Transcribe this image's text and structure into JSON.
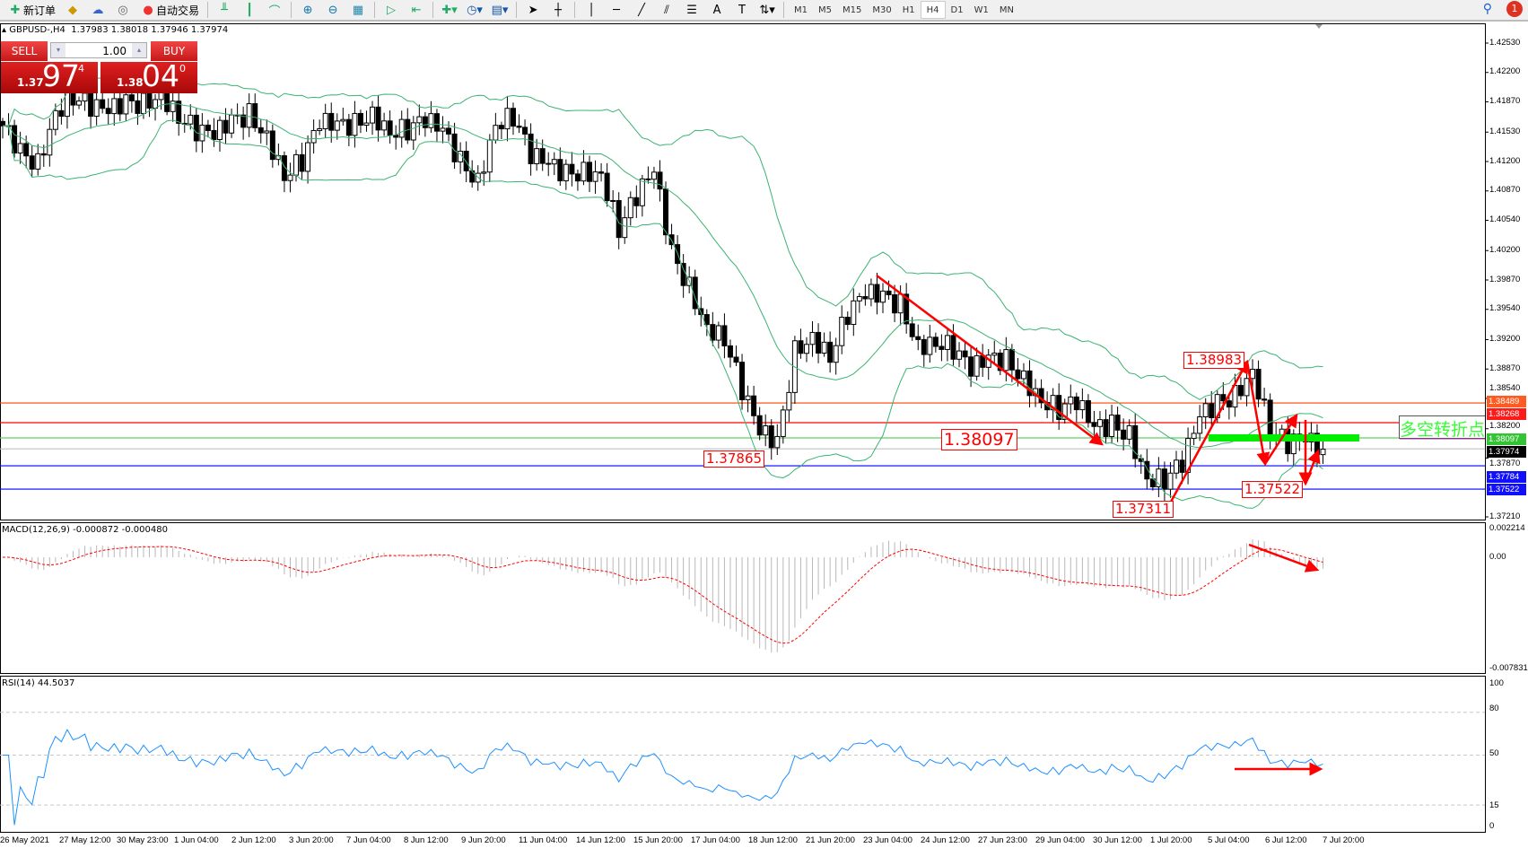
{
  "toolbar": {
    "new_order": "新订单",
    "auto_trading": "自动交易",
    "timeframes": [
      "M1",
      "M5",
      "M15",
      "M30",
      "H1",
      "H4",
      "D1",
      "W1",
      "MN"
    ],
    "active_timeframe": "H4",
    "notification_count": "1"
  },
  "header": {
    "symbol": "GBPUSD-,H4",
    "ohlc": "1.37983 1.38018 1.37946 1.37974"
  },
  "trade_panel": {
    "sell_label": "SELL",
    "buy_label": "BUY",
    "lot": "1.00",
    "sell_prefix": "1.37",
    "sell_big": "97",
    "sell_sup": "4",
    "buy_prefix": "1.38",
    "buy_big": "04",
    "buy_sup": "0"
  },
  "price_axis": [
    "1.42530",
    "1.42200",
    "1.41870",
    "1.41530",
    "1.41200",
    "1.40870",
    "1.40540",
    "1.40200",
    "1.39870",
    "1.39540",
    "1.39200",
    "1.38870",
    "1.38540",
    "1.38200",
    "1.37870",
    "1.37210"
  ],
  "levels": [
    {
      "price": "1.38489",
      "color": "#ff5a1f",
      "line": "#ff4000"
    },
    {
      "price": "1.38268",
      "color": "#ff1a1a",
      "line": "#ff0000"
    },
    {
      "price": "1.38097",
      "color": "#33c433",
      "line": "#66cc66"
    },
    {
      "price": "1.37974",
      "color": "#000000",
      "line": "#c0c0c0"
    },
    {
      "price": "1.37784",
      "color": "#1010ff",
      "line": "#0000ff"
    },
    {
      "price": "1.37522",
      "color": "#1010ff",
      "line": "#0000ff"
    }
  ],
  "annotations": {
    "a1": "1.37865",
    "a2": "1.38097",
    "a3": "1.37311",
    "a4": "1.38983",
    "a5": "1.37522",
    "pivot_text": "多空转折点"
  },
  "macd": {
    "label": "MACD(12,26,9) -0.000872 -0.000480",
    "axis": [
      "0.002214",
      "0.00",
      "-0.007831"
    ]
  },
  "rsi": {
    "label": "RSI(14) 44.5037",
    "axis": [
      "100",
      "80",
      "50",
      "15",
      "0"
    ]
  },
  "time_axis": [
    "26 May 2021",
    "27 May 12:00",
    "30 May 23:00",
    "1 Jun 04:00",
    "2 Jun 12:00",
    "3 Jun 20:00",
    "7 Jun 04:00",
    "8 Jun 12:00",
    "9 Jun 20:00",
    "11 Jun 04:00",
    "14 Jun 12:00",
    "15 Jun 20:00",
    "17 Jun 04:00",
    "18 Jun 12:00",
    "21 Jun 20:00",
    "23 Jun 04:00",
    "24 Jun 12:00",
    "27 Jun 23:00",
    "29 Jun 04:00",
    "30 Jun 12:00",
    "1 Jul 20:00",
    "5 Jul 04:00",
    "6 Jul 12:00",
    "7 Jul 20:00"
  ],
  "chart_data": {
    "type": "candlestick",
    "symbol": "GBPUSD",
    "timeframe": "H4",
    "ylim": [
      1.3721,
      1.4253
    ],
    "closes_every_3_bars": [
      1.416,
      1.413,
      1.4118,
      1.4176,
      1.4193,
      1.4182,
      1.4176,
      1.4186,
      1.4185,
      1.4196,
      1.4171,
      1.4155,
      1.4149,
      1.4165,
      1.4173,
      1.4149,
      1.4105,
      1.4121,
      1.4163,
      1.416,
      1.4162,
      1.4174,
      1.4154,
      1.4156,
      1.4166,
      1.4154,
      1.412,
      1.4098,
      1.4163,
      1.4171,
      1.4127,
      1.4116,
      1.4106,
      1.4109,
      1.4107,
      1.4045,
      1.4081,
      1.4109,
      1.4017,
      1.3979,
      1.3935,
      1.3922,
      1.3864,
      1.3816,
      1.3803,
      1.3907,
      1.3924,
      1.3902,
      1.3949,
      1.3971,
      1.3968,
      1.3959,
      1.3914,
      1.3918,
      1.391,
      1.3886,
      1.3898,
      1.3897,
      1.3877,
      1.3853,
      1.3842,
      1.385,
      1.382,
      1.3824,
      1.3814,
      1.3765,
      1.3763,
      1.3781,
      1.3833,
      1.3848,
      1.3858,
      1.3886,
      1.382,
      1.3803,
      1.3807,
      1.3797
    ],
    "indicators": [
      "Bollinger Bands",
      "MACD(12,26,9)",
      "RSI(14)"
    ]
  }
}
